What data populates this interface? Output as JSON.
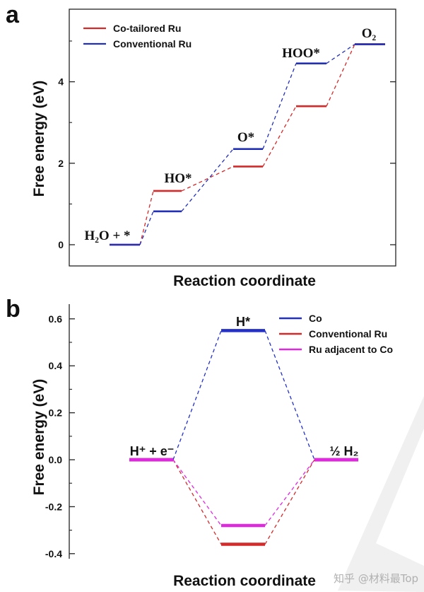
{
  "chart_data": [
    {
      "panel": "a",
      "type": "line",
      "xlabel": "Reaction coordinate",
      "ylabel": "Free energy (eV)",
      "ylim": [
        -0.5,
        5.6
      ],
      "yticks": [
        0,
        2,
        4
      ],
      "steps": [
        "H₂O + *",
        "HO*",
        "O*",
        "HOO*",
        "O₂"
      ],
      "series": [
        {
          "name": "Co-tailored Ru",
          "color": "#d42a2a",
          "values": [
            0,
            1.32,
            1.92,
            3.4,
            4.92
          ]
        },
        {
          "name": "Conventional Ru",
          "color": "#2330b8",
          "values": [
            0,
            0.82,
            2.35,
            4.45,
            4.92
          ]
        }
      ],
      "legend_position": "top-left"
    },
    {
      "panel": "b",
      "type": "line",
      "xlabel": "Reaction coordinate",
      "ylabel": "Free energy (eV)",
      "ylim": [
        -0.4,
        0.62
      ],
      "yticks": [
        "0.6",
        "0.4",
        "0.2",
        "0.0",
        "-0.2",
        "-0.4"
      ],
      "steps": [
        "H⁺ + e⁻",
        "H*",
        "½ H₂"
      ],
      "series": [
        {
          "name": "Co",
          "color": "#2330c8",
          "values": [
            0,
            0.55,
            0
          ]
        },
        {
          "name": "Conventional Ru",
          "color": "#d42a2a",
          "values": [
            0,
            -0.36,
            0
          ]
        },
        {
          "name": "Ru adjacent to Co",
          "color": "#e028e0",
          "values": [
            0,
            -0.28,
            0
          ]
        }
      ],
      "legend_position": "top-right"
    }
  ],
  "panels": {
    "a": {
      "label": "a"
    },
    "b": {
      "label": "b"
    }
  },
  "watermark": {
    "text": "知乎 @材料最Top"
  }
}
